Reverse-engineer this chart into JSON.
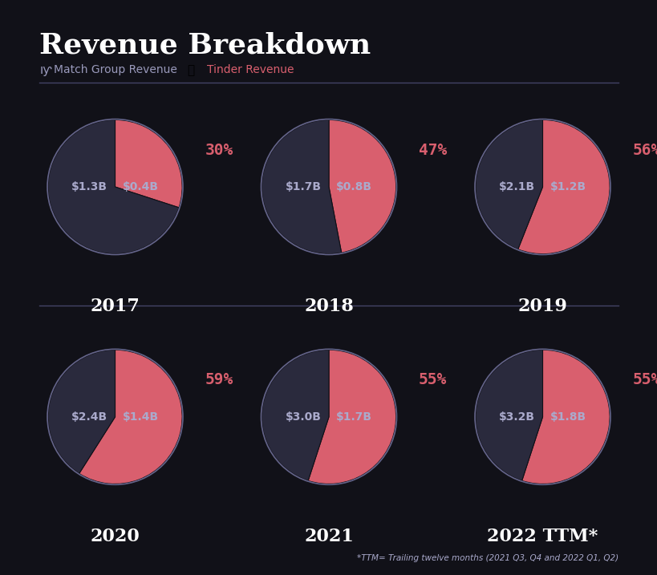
{
  "title": "Revenue Breakdown",
  "background_color": "#111118",
  "pie_dark_color": "#2a2a3d",
  "pie_red_color": "#d95f6e",
  "pie_border_color": "#8888bb",
  "legend_match_color": "#9999bb",
  "legend_tinder_color": "#d95f6e",
  "years": [
    "2017",
    "2018",
    "2019",
    "2020",
    "2021",
    "2022 TTM*"
  ],
  "tinder_pct": [
    30,
    47,
    56,
    59,
    55,
    55
  ],
  "match_revenue": [
    "$1.3B",
    "$1.7B",
    "$2.1B",
    "$2.4B",
    "$3.0B",
    "$3.2B"
  ],
  "tinder_revenue": [
    "$0.4B",
    "$0.8B",
    "$1.2B",
    "$1.4B",
    "$1.7B",
    "$1.8B"
  ],
  "footnote": "*TTM= Trailing twelve months (2021 Q3, Q4 and 2022 Q1, Q2)",
  "title_color": "#ffffff",
  "year_label_color": "#ffffff",
  "pct_label_color": "#d95f6e",
  "value_label_color": "#aaaacc",
  "border_color": "#444466"
}
